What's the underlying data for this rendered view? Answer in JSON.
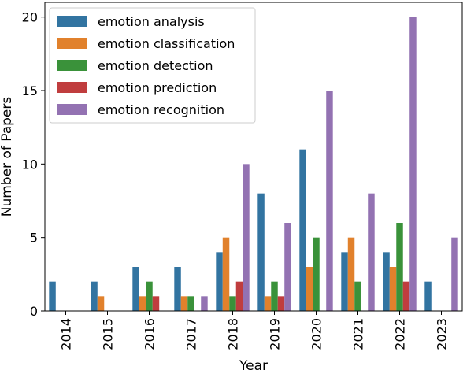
{
  "chart_data": {
    "type": "bar",
    "xlabel": "Year",
    "ylabel": "Number of Papers",
    "ylim": [
      0,
      21
    ],
    "yticks": [
      0,
      5,
      10,
      15,
      20
    ],
    "grid": false,
    "legend_position": "top-left",
    "categories": [
      "2014",
      "2015",
      "2016",
      "2017",
      "2018",
      "2019",
      "2020",
      "2021",
      "2022",
      "2023"
    ],
    "series": [
      {
        "name": "emotion analysis",
        "color": "#3274a1",
        "values": [
          2,
          2,
          3,
          3,
          4,
          8,
          11,
          4,
          4,
          2
        ]
      },
      {
        "name": "emotion classification",
        "color": "#e1812c",
        "values": [
          0,
          1,
          1,
          1,
          5,
          1,
          3,
          5,
          3,
          0
        ]
      },
      {
        "name": "emotion detection",
        "color": "#3a923a",
        "values": [
          0,
          0,
          2,
          1,
          1,
          2,
          5,
          2,
          6,
          0
        ]
      },
      {
        "name": "emotion prediction",
        "color": "#c03d3e",
        "values": [
          0,
          0,
          1,
          0,
          2,
          1,
          0,
          0,
          2,
          0
        ]
      },
      {
        "name": "emotion recognition",
        "color": "#9372b2",
        "values": [
          0,
          0,
          0,
          1,
          10,
          6,
          15,
          8,
          20,
          5
        ]
      }
    ]
  }
}
